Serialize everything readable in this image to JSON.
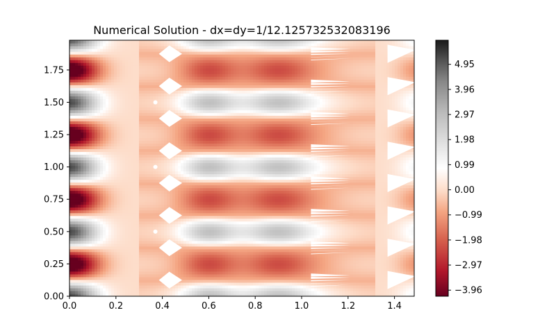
{
  "chart_data": {
    "type": "heatmap",
    "title": "Numerical Solution - dx=dy=1/12.125732532083196",
    "xlabel": "",
    "ylabel": "",
    "xlim": [
      0.0,
      1.485
    ],
    "ylim": [
      0.0,
      1.98
    ],
    "x_ticks": [
      0.0,
      0.2,
      0.4,
      0.6,
      0.8,
      1.0,
      1.2,
      1.4
    ],
    "x_tick_labels": [
      "0.0",
      "0.2",
      "0.4",
      "0.6",
      "0.8",
      "1.0",
      "1.2",
      "1.4"
    ],
    "y_ticks": [
      0.0,
      0.25,
      0.5,
      0.75,
      1.0,
      1.25,
      1.5,
      1.75
    ],
    "y_tick_labels": [
      "0.00",
      "0.25",
      "0.50",
      "0.75",
      "1.00",
      "1.25",
      "1.50",
      "1.75"
    ],
    "colorbar": {
      "colormap": "RdGy",
      "vmin": -4.2,
      "vmax": 5.9,
      "ticks": [
        -3.96,
        -2.97,
        -1.98,
        -0.99,
        0.0,
        0.99,
        1.98,
        2.97,
        3.96,
        4.95
      ],
      "tick_labels": [
        "−3.96",
        "−2.97",
        "−1.98",
        "−0.99",
        "0.00",
        "0.99",
        "1.98",
        "2.97",
        "3.96",
        "4.95"
      ]
    },
    "colors": {
      "red_end": "#67001f",
      "mid": "#ffffff",
      "grey_end": "#1a1a1a"
    }
  }
}
